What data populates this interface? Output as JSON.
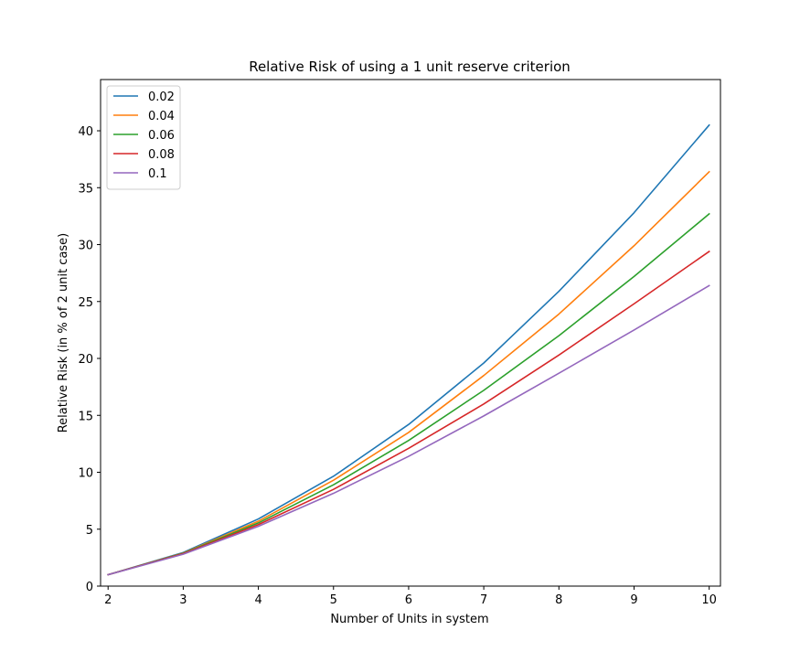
{
  "chart_data": {
    "type": "line",
    "title": "Relative Risk of using a 1 unit reserve criterion",
    "xlabel": "Number of Units in system",
    "ylabel": "Relative Risk (in % of 2 unit case)",
    "xlim": [
      1.9,
      10.15
    ],
    "ylim": [
      0,
      44.5
    ],
    "xticks": [
      2,
      3,
      4,
      5,
      6,
      7,
      8,
      9,
      10
    ],
    "yticks": [
      0,
      5,
      10,
      15,
      20,
      25,
      30,
      35,
      40
    ],
    "grid": false,
    "legend_position": "upper-left",
    "x": [
      2,
      3,
      4,
      5,
      6,
      7,
      8,
      9,
      10
    ],
    "series": [
      {
        "name": "0.02",
        "color": "#1f77b4",
        "values": [
          1.0,
          2.95,
          5.9,
          9.65,
          14.2,
          19.6,
          25.9,
          32.8,
          40.5
        ]
      },
      {
        "name": "0.04",
        "color": "#ff7f0e",
        "values": [
          1.0,
          2.9,
          5.7,
          9.3,
          13.5,
          18.5,
          23.9,
          29.9,
          36.4
        ]
      },
      {
        "name": "0.06",
        "color": "#2ca02c",
        "values": [
          1.0,
          2.88,
          5.55,
          8.9,
          12.8,
          17.2,
          22.0,
          27.2,
          32.7
        ]
      },
      {
        "name": "0.08",
        "color": "#d62728",
        "values": [
          1.0,
          2.85,
          5.4,
          8.5,
          12.1,
          16.0,
          20.3,
          24.8,
          29.4
        ]
      },
      {
        "name": "0.1",
        "color": "#9467bd",
        "values": [
          1.0,
          2.8,
          5.25,
          8.15,
          11.4,
          14.95,
          18.7,
          22.5,
          26.4
        ]
      }
    ]
  }
}
